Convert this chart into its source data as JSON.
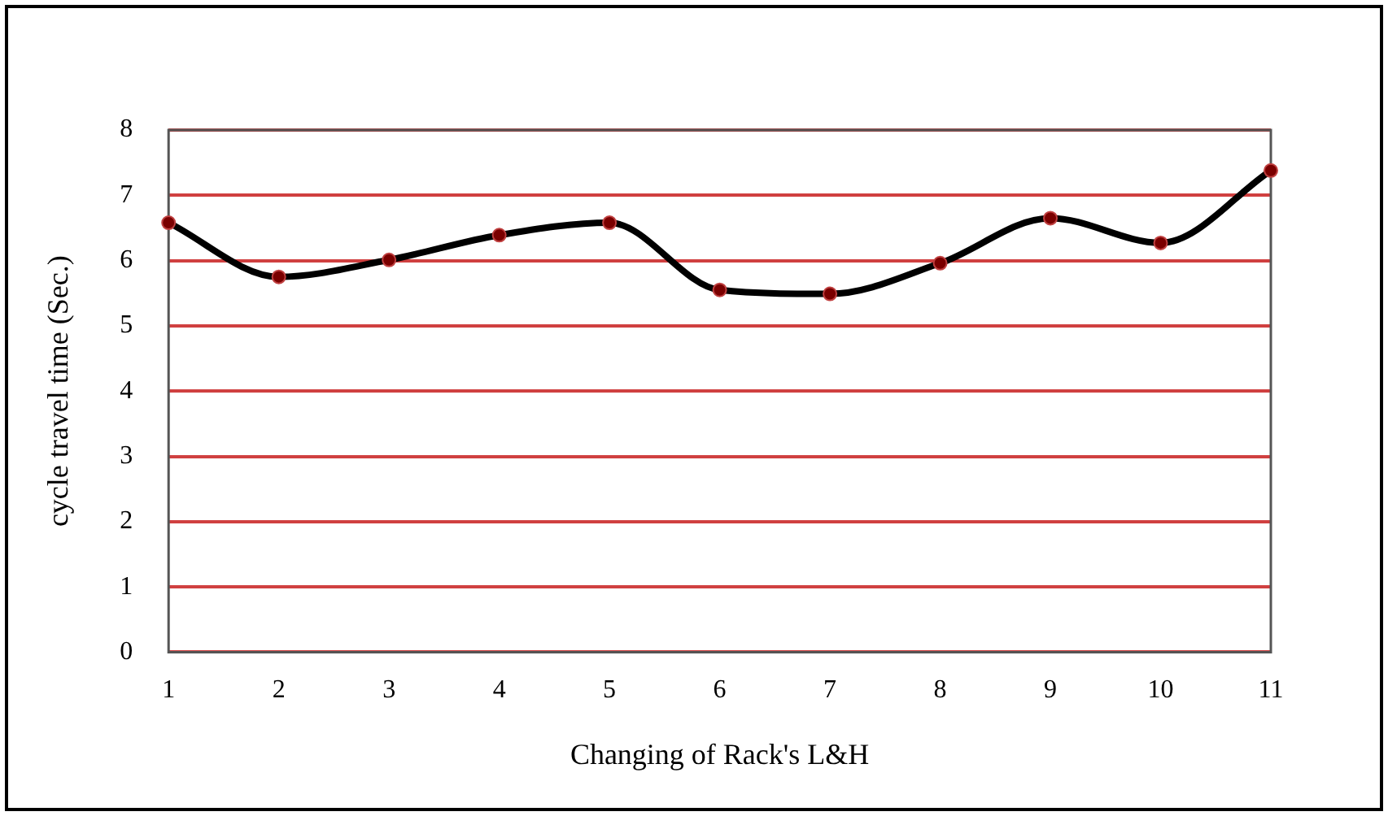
{
  "chart_data": {
    "type": "line",
    "xlabel": "Changing of Rack's L&H",
    "ylabel": "cycle travel time (Sec.)",
    "categories": [
      "1",
      "2",
      "3",
      "4",
      "5",
      "6",
      "7",
      "8",
      "9",
      "10",
      "11"
    ],
    "series": [
      {
        "color": "#000000",
        "values": [
          6.58,
          5.75,
          6.01,
          6.39,
          6.58,
          5.55,
          5.49,
          5.96,
          6.65,
          6.27,
          7.38
        ]
      }
    ],
    "ylim": [
      0,
      8
    ],
    "yticks": [
      0,
      1,
      2,
      3,
      4,
      5,
      6,
      7,
      8
    ],
    "grid": "y",
    "marker": "circle",
    "legend": false
  }
}
